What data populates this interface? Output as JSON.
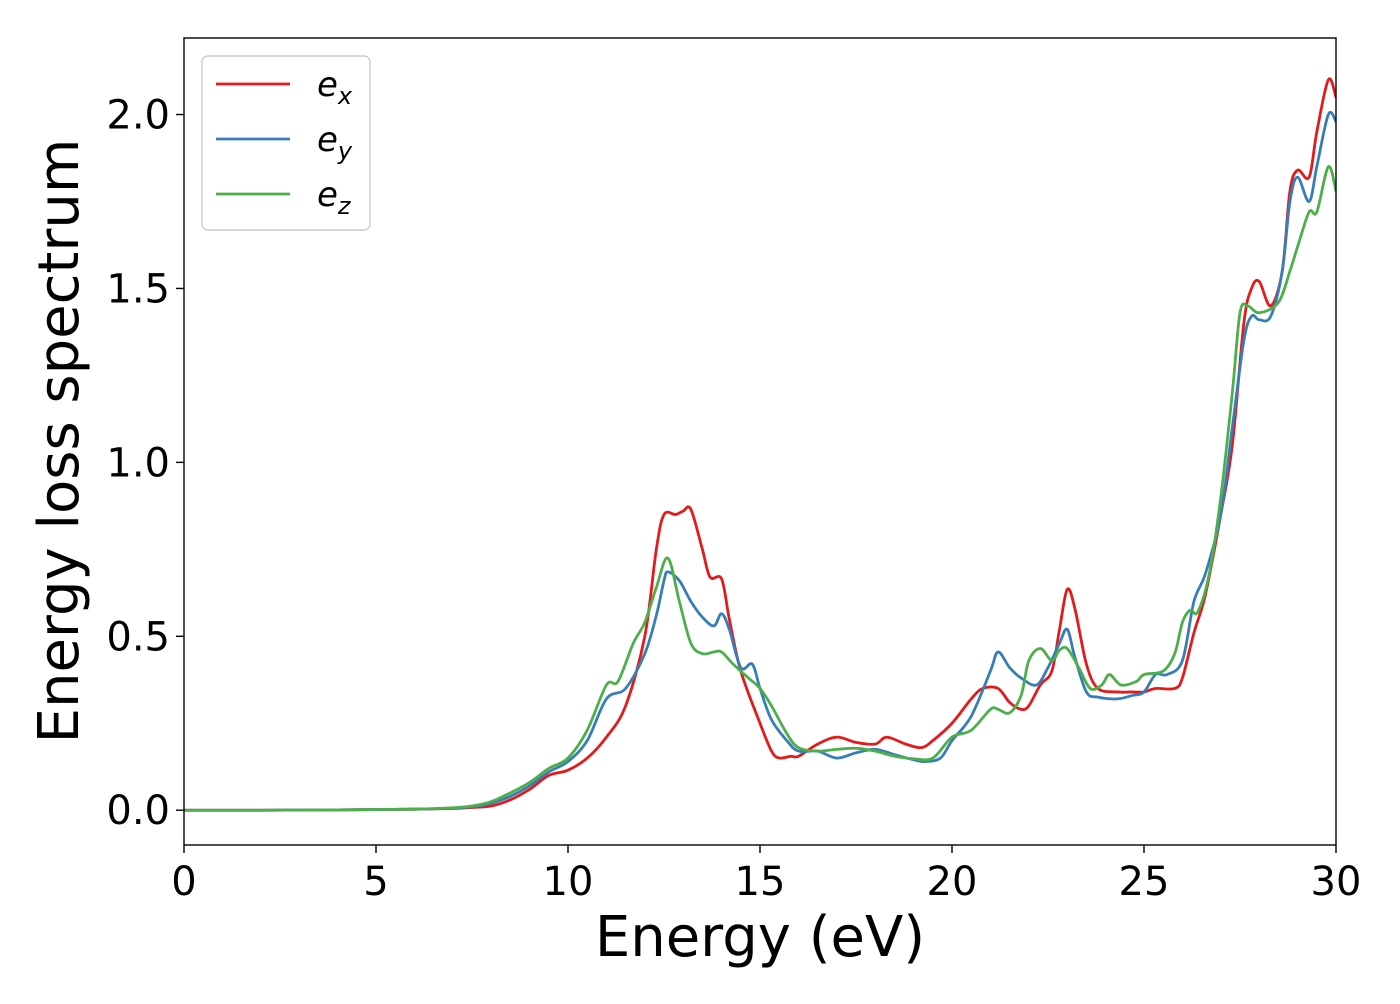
{
  "chart_data": {
    "type": "line",
    "title": "",
    "xlabel": "Energy (eV)",
    "ylabel": "Energy loss spectrum",
    "xlim": [
      0,
      30
    ],
    "ylim": [
      -0.1,
      2.22
    ],
    "xticks": [
      0,
      5,
      10,
      15,
      20,
      25,
      30
    ],
    "xtick_labels": [
      "0",
      "5",
      "10",
      "15",
      "20",
      "25",
      "30"
    ],
    "yticks": [
      0.0,
      0.5,
      1.0,
      1.5,
      2.0
    ],
    "ytick_labels": [
      "0.0",
      "0.5",
      "1.0",
      "1.5",
      "2.0"
    ],
    "grid": false,
    "legend_position": "top-left",
    "series": [
      {
        "base": "e",
        "sub": "x",
        "color": "#e41a1c",
        "points": [
          [
            0,
            0
          ],
          [
            2,
            0
          ],
          [
            4,
            0.001
          ],
          [
            6,
            0.003
          ],
          [
            7,
            0.005
          ],
          [
            7.5,
            0.008
          ],
          [
            8,
            0.012
          ],
          [
            8.5,
            0.03
          ],
          [
            9,
            0.06
          ],
          [
            9.5,
            0.1
          ],
          [
            10,
            0.115
          ],
          [
            10.5,
            0.15
          ],
          [
            11,
            0.21
          ],
          [
            11.5,
            0.3
          ],
          [
            12,
            0.5
          ],
          [
            12.3,
            0.75
          ],
          [
            12.5,
            0.85
          ],
          [
            12.8,
            0.85
          ],
          [
            13,
            0.86
          ],
          [
            13.2,
            0.865
          ],
          [
            13.5,
            0.75
          ],
          [
            13.7,
            0.67
          ],
          [
            14,
            0.665
          ],
          [
            14.2,
            0.55
          ],
          [
            14.5,
            0.4
          ],
          [
            15,
            0.25
          ],
          [
            15.3,
            0.17
          ],
          [
            15.5,
            0.15
          ],
          [
            15.8,
            0.155
          ],
          [
            16,
            0.155
          ],
          [
            16.5,
            0.19
          ],
          [
            17,
            0.21
          ],
          [
            17.5,
            0.195
          ],
          [
            18,
            0.19
          ],
          [
            18.3,
            0.21
          ],
          [
            18.8,
            0.19
          ],
          [
            19.2,
            0.18
          ],
          [
            19.5,
            0.2
          ],
          [
            20,
            0.25
          ],
          [
            20.5,
            0.32
          ],
          [
            20.8,
            0.35
          ],
          [
            21.2,
            0.35
          ],
          [
            21.5,
            0.31
          ],
          [
            21.8,
            0.29
          ],
          [
            22,
            0.3
          ],
          [
            22.3,
            0.36
          ],
          [
            22.6,
            0.4
          ],
          [
            22.8,
            0.52
          ],
          [
            23,
            0.635
          ],
          [
            23.2,
            0.58
          ],
          [
            23.5,
            0.42
          ],
          [
            23.8,
            0.35
          ],
          [
            24.3,
            0.34
          ],
          [
            24.7,
            0.34
          ],
          [
            25,
            0.34
          ],
          [
            25.3,
            0.35
          ],
          [
            25.8,
            0.35
          ],
          [
            26,
            0.38
          ],
          [
            26.3,
            0.51
          ],
          [
            26.6,
            0.62
          ],
          [
            27,
            0.85
          ],
          [
            27.3,
            1.05
          ],
          [
            27.6,
            1.4
          ],
          [
            27.8,
            1.5
          ],
          [
            28,
            1.52
          ],
          [
            28.3,
            1.45
          ],
          [
            28.6,
            1.55
          ],
          [
            28.8,
            1.78
          ],
          [
            29,
            1.84
          ],
          [
            29.3,
            1.82
          ],
          [
            29.5,
            1.95
          ],
          [
            29.8,
            2.1
          ],
          [
            30,
            2.05
          ]
        ]
      },
      {
        "base": "e",
        "sub": "y",
        "color": "#377eb8",
        "points": [
          [
            0,
            0
          ],
          [
            2,
            0
          ],
          [
            4,
            0.001
          ],
          [
            6,
            0.003
          ],
          [
            7,
            0.006
          ],
          [
            7.5,
            0.01
          ],
          [
            8,
            0.02
          ],
          [
            8.5,
            0.04
          ],
          [
            9,
            0.07
          ],
          [
            9.5,
            0.11
          ],
          [
            10,
            0.14
          ],
          [
            10.5,
            0.2
          ],
          [
            11,
            0.32
          ],
          [
            11.5,
            0.35
          ],
          [
            12,
            0.45
          ],
          [
            12.3,
            0.56
          ],
          [
            12.5,
            0.66
          ],
          [
            12.6,
            0.685
          ],
          [
            12.9,
            0.66
          ],
          [
            13.2,
            0.6
          ],
          [
            13.5,
            0.555
          ],
          [
            13.8,
            0.53
          ],
          [
            14,
            0.565
          ],
          [
            14.2,
            0.52
          ],
          [
            14.5,
            0.41
          ],
          [
            14.8,
            0.42
          ],
          [
            15,
            0.35
          ],
          [
            15.3,
            0.26
          ],
          [
            15.7,
            0.2
          ],
          [
            16,
            0.17
          ],
          [
            16.5,
            0.17
          ],
          [
            17,
            0.15
          ],
          [
            17.5,
            0.165
          ],
          [
            18,
            0.175
          ],
          [
            18.5,
            0.16
          ],
          [
            19,
            0.145
          ],
          [
            19.3,
            0.14
          ],
          [
            19.7,
            0.15
          ],
          [
            20,
            0.2
          ],
          [
            20.5,
            0.27
          ],
          [
            21,
            0.4
          ],
          [
            21.2,
            0.455
          ],
          [
            21.5,
            0.41
          ],
          [
            21.8,
            0.38
          ],
          [
            22.2,
            0.36
          ],
          [
            22.5,
            0.41
          ],
          [
            22.8,
            0.48
          ],
          [
            23,
            0.52
          ],
          [
            23.2,
            0.44
          ],
          [
            23.5,
            0.34
          ],
          [
            23.8,
            0.325
          ],
          [
            24.3,
            0.32
          ],
          [
            24.7,
            0.33
          ],
          [
            25,
            0.34
          ],
          [
            25.3,
            0.39
          ],
          [
            25.6,
            0.39
          ],
          [
            26,
            0.43
          ],
          [
            26.3,
            0.6
          ],
          [
            26.6,
            0.68
          ],
          [
            27,
            0.85
          ],
          [
            27.3,
            1.1
          ],
          [
            27.6,
            1.35
          ],
          [
            27.8,
            1.42
          ],
          [
            28,
            1.41
          ],
          [
            28.3,
            1.42
          ],
          [
            28.6,
            1.55
          ],
          [
            28.8,
            1.75
          ],
          [
            29,
            1.82
          ],
          [
            29.3,
            1.75
          ],
          [
            29.5,
            1.85
          ],
          [
            29.8,
            2.0
          ],
          [
            30,
            1.98
          ]
        ]
      },
      {
        "base": "e",
        "sub": "z",
        "color": "#4daf4a",
        "points": [
          [
            0,
            0
          ],
          [
            2,
            0
          ],
          [
            4,
            0.001
          ],
          [
            6,
            0.003
          ],
          [
            7,
            0.007
          ],
          [
            7.5,
            0.012
          ],
          [
            8,
            0.025
          ],
          [
            8.5,
            0.05
          ],
          [
            9,
            0.08
          ],
          [
            9.5,
            0.12
          ],
          [
            10,
            0.15
          ],
          [
            10.5,
            0.23
          ],
          [
            11,
            0.36
          ],
          [
            11.3,
            0.37
          ],
          [
            11.7,
            0.48
          ],
          [
            12,
            0.54
          ],
          [
            12.3,
            0.64
          ],
          [
            12.6,
            0.725
          ],
          [
            12.9,
            0.6
          ],
          [
            13.2,
            0.48
          ],
          [
            13.5,
            0.45
          ],
          [
            13.8,
            0.455
          ],
          [
            14,
            0.455
          ],
          [
            14.3,
            0.42
          ],
          [
            14.7,
            0.38
          ],
          [
            15,
            0.35
          ],
          [
            15.3,
            0.3
          ],
          [
            15.7,
            0.22
          ],
          [
            16,
            0.18
          ],
          [
            16.5,
            0.17
          ],
          [
            17,
            0.175
          ],
          [
            17.5,
            0.178
          ],
          [
            18,
            0.17
          ],
          [
            18.5,
            0.155
          ],
          [
            19,
            0.148
          ],
          [
            19.5,
            0.15
          ],
          [
            20,
            0.21
          ],
          [
            20.5,
            0.23
          ],
          [
            21,
            0.29
          ],
          [
            21.2,
            0.29
          ],
          [
            21.5,
            0.28
          ],
          [
            21.8,
            0.33
          ],
          [
            22,
            0.43
          ],
          [
            22.3,
            0.465
          ],
          [
            22.6,
            0.43
          ],
          [
            22.8,
            0.46
          ],
          [
            23,
            0.465
          ],
          [
            23.3,
            0.41
          ],
          [
            23.6,
            0.35
          ],
          [
            23.9,
            0.36
          ],
          [
            24.1,
            0.39
          ],
          [
            24.4,
            0.36
          ],
          [
            24.8,
            0.37
          ],
          [
            25,
            0.39
          ],
          [
            25.5,
            0.4
          ],
          [
            25.8,
            0.45
          ],
          [
            26,
            0.54
          ],
          [
            26.2,
            0.575
          ],
          [
            26.4,
            0.57
          ],
          [
            26.7,
            0.68
          ],
          [
            27,
            0.9
          ],
          [
            27.3,
            1.2
          ],
          [
            27.5,
            1.43
          ],
          [
            27.7,
            1.45
          ],
          [
            28,
            1.43
          ],
          [
            28.5,
            1.46
          ],
          [
            28.8,
            1.55
          ],
          [
            29,
            1.62
          ],
          [
            29.3,
            1.72
          ],
          [
            29.5,
            1.72
          ],
          [
            29.8,
            1.85
          ],
          [
            30,
            1.78
          ]
        ]
      }
    ]
  }
}
